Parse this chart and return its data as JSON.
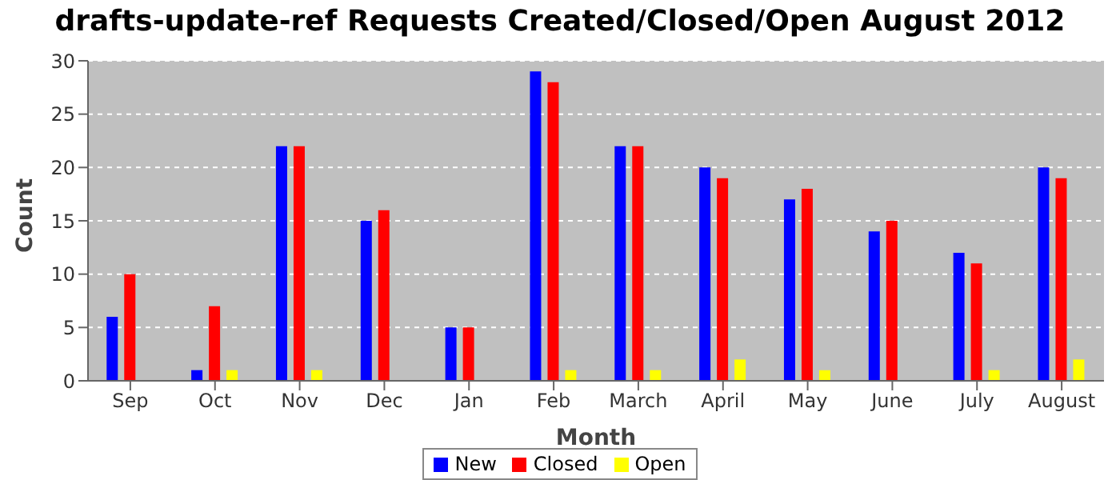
{
  "chart_data": {
    "type": "bar",
    "title": "drafts-update-ref Requests Created/Closed/Open August 2012",
    "xlabel": "Month",
    "ylabel": "Count",
    "categories": [
      "Sep",
      "Oct",
      "Nov",
      "Dec",
      "Jan",
      "Feb",
      "March",
      "April",
      "May",
      "June",
      "July",
      "August"
    ],
    "series": [
      {
        "name": "New",
        "color": "#0000ff",
        "values": [
          6,
          1,
          22,
          15,
          5,
          29,
          22,
          20,
          17,
          14,
          12,
          20
        ]
      },
      {
        "name": "Closed",
        "color": "#ff0000",
        "values": [
          10,
          7,
          22,
          16,
          5,
          28,
          22,
          19,
          18,
          15,
          11,
          19
        ]
      },
      {
        "name": "Open",
        "color": "#ffff00",
        "values": [
          0,
          1,
          1,
          0,
          0,
          1,
          1,
          2,
          1,
          0,
          1,
          2
        ]
      }
    ],
    "ylim": [
      0,
      30
    ],
    "yticks": [
      0,
      5,
      10,
      15,
      20,
      25,
      30
    ],
    "grid": "y",
    "legend": "bottom"
  }
}
